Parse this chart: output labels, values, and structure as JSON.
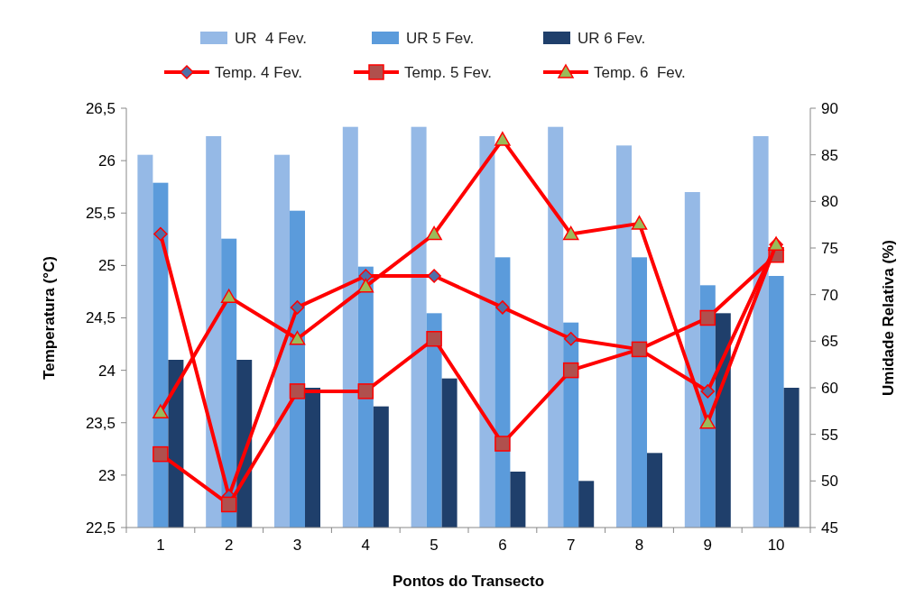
{
  "chart_data": {
    "type": "bar",
    "xlabel": "Pontos do Transecto",
    "ylabel": "Temperatura (°C)",
    "y2label": "Umidade Relativa (%)",
    "categories": [
      "1",
      "2",
      "3",
      "4",
      "5",
      "6",
      "7",
      "8",
      "9",
      "10"
    ],
    "series": [
      {
        "name": "UR  4 Fev.",
        "axis": "y2",
        "color": "#95b9e6",
        "values": [
          85,
          87,
          85,
          88,
          88,
          87,
          88,
          86,
          81,
          87
        ]
      },
      {
        "name": "UR 5 Fev.",
        "axis": "y2",
        "color": "#5b9bdb",
        "values": [
          82,
          76,
          79,
          73,
          68,
          74,
          67,
          74,
          71,
          72
        ]
      },
      {
        "name": "UR 6 Fev.",
        "axis": "y2",
        "color": "#1f3f6b",
        "values": [
          63,
          63,
          60,
          58,
          61,
          51,
          50,
          53,
          68,
          60
        ]
      },
      {
        "name": "Temp. 4 Fev.",
        "type": "line",
        "color": "#ff0000",
        "marker": "diamond",
        "values": [
          25.3,
          22.8,
          24.6,
          24.9,
          24.9,
          24.6,
          24.3,
          24.2,
          23.8,
          25.2
        ]
      },
      {
        "name": "Temp. 5 Fev.",
        "type": "line",
        "color": "#ff0000",
        "marker": "square",
        "values": [
          23.2,
          22.72,
          23.8,
          23.8,
          24.3,
          23.3,
          24.0,
          24.2,
          24.5,
          25.1
        ]
      },
      {
        "name": "Temp. 6  Fev.",
        "type": "line",
        "color": "#ff0000",
        "marker": "triangle",
        "values": [
          23.6,
          24.7,
          24.3,
          24.8,
          25.3,
          26.2,
          25.3,
          25.4,
          23.5,
          25.2
        ]
      }
    ],
    "ylim": [
      22.5,
      26.5
    ],
    "yticks": [
      {
        "value": 22.5,
        "label": "22,5"
      },
      23,
      {
        "value": 23.5,
        "label": "23,5"
      },
      24,
      {
        "value": 24.5,
        "label": "24,5"
      },
      25,
      {
        "value": 25.5,
        "label": "25,5"
      },
      26,
      {
        "value": 26.5,
        "label": "26,5"
      }
    ],
    "y2lim": [
      45,
      90
    ],
    "y2ticks": [
      45,
      50,
      55,
      60,
      65,
      70,
      75,
      80,
      85,
      90
    ],
    "legend": "top",
    "grid": false
  }
}
